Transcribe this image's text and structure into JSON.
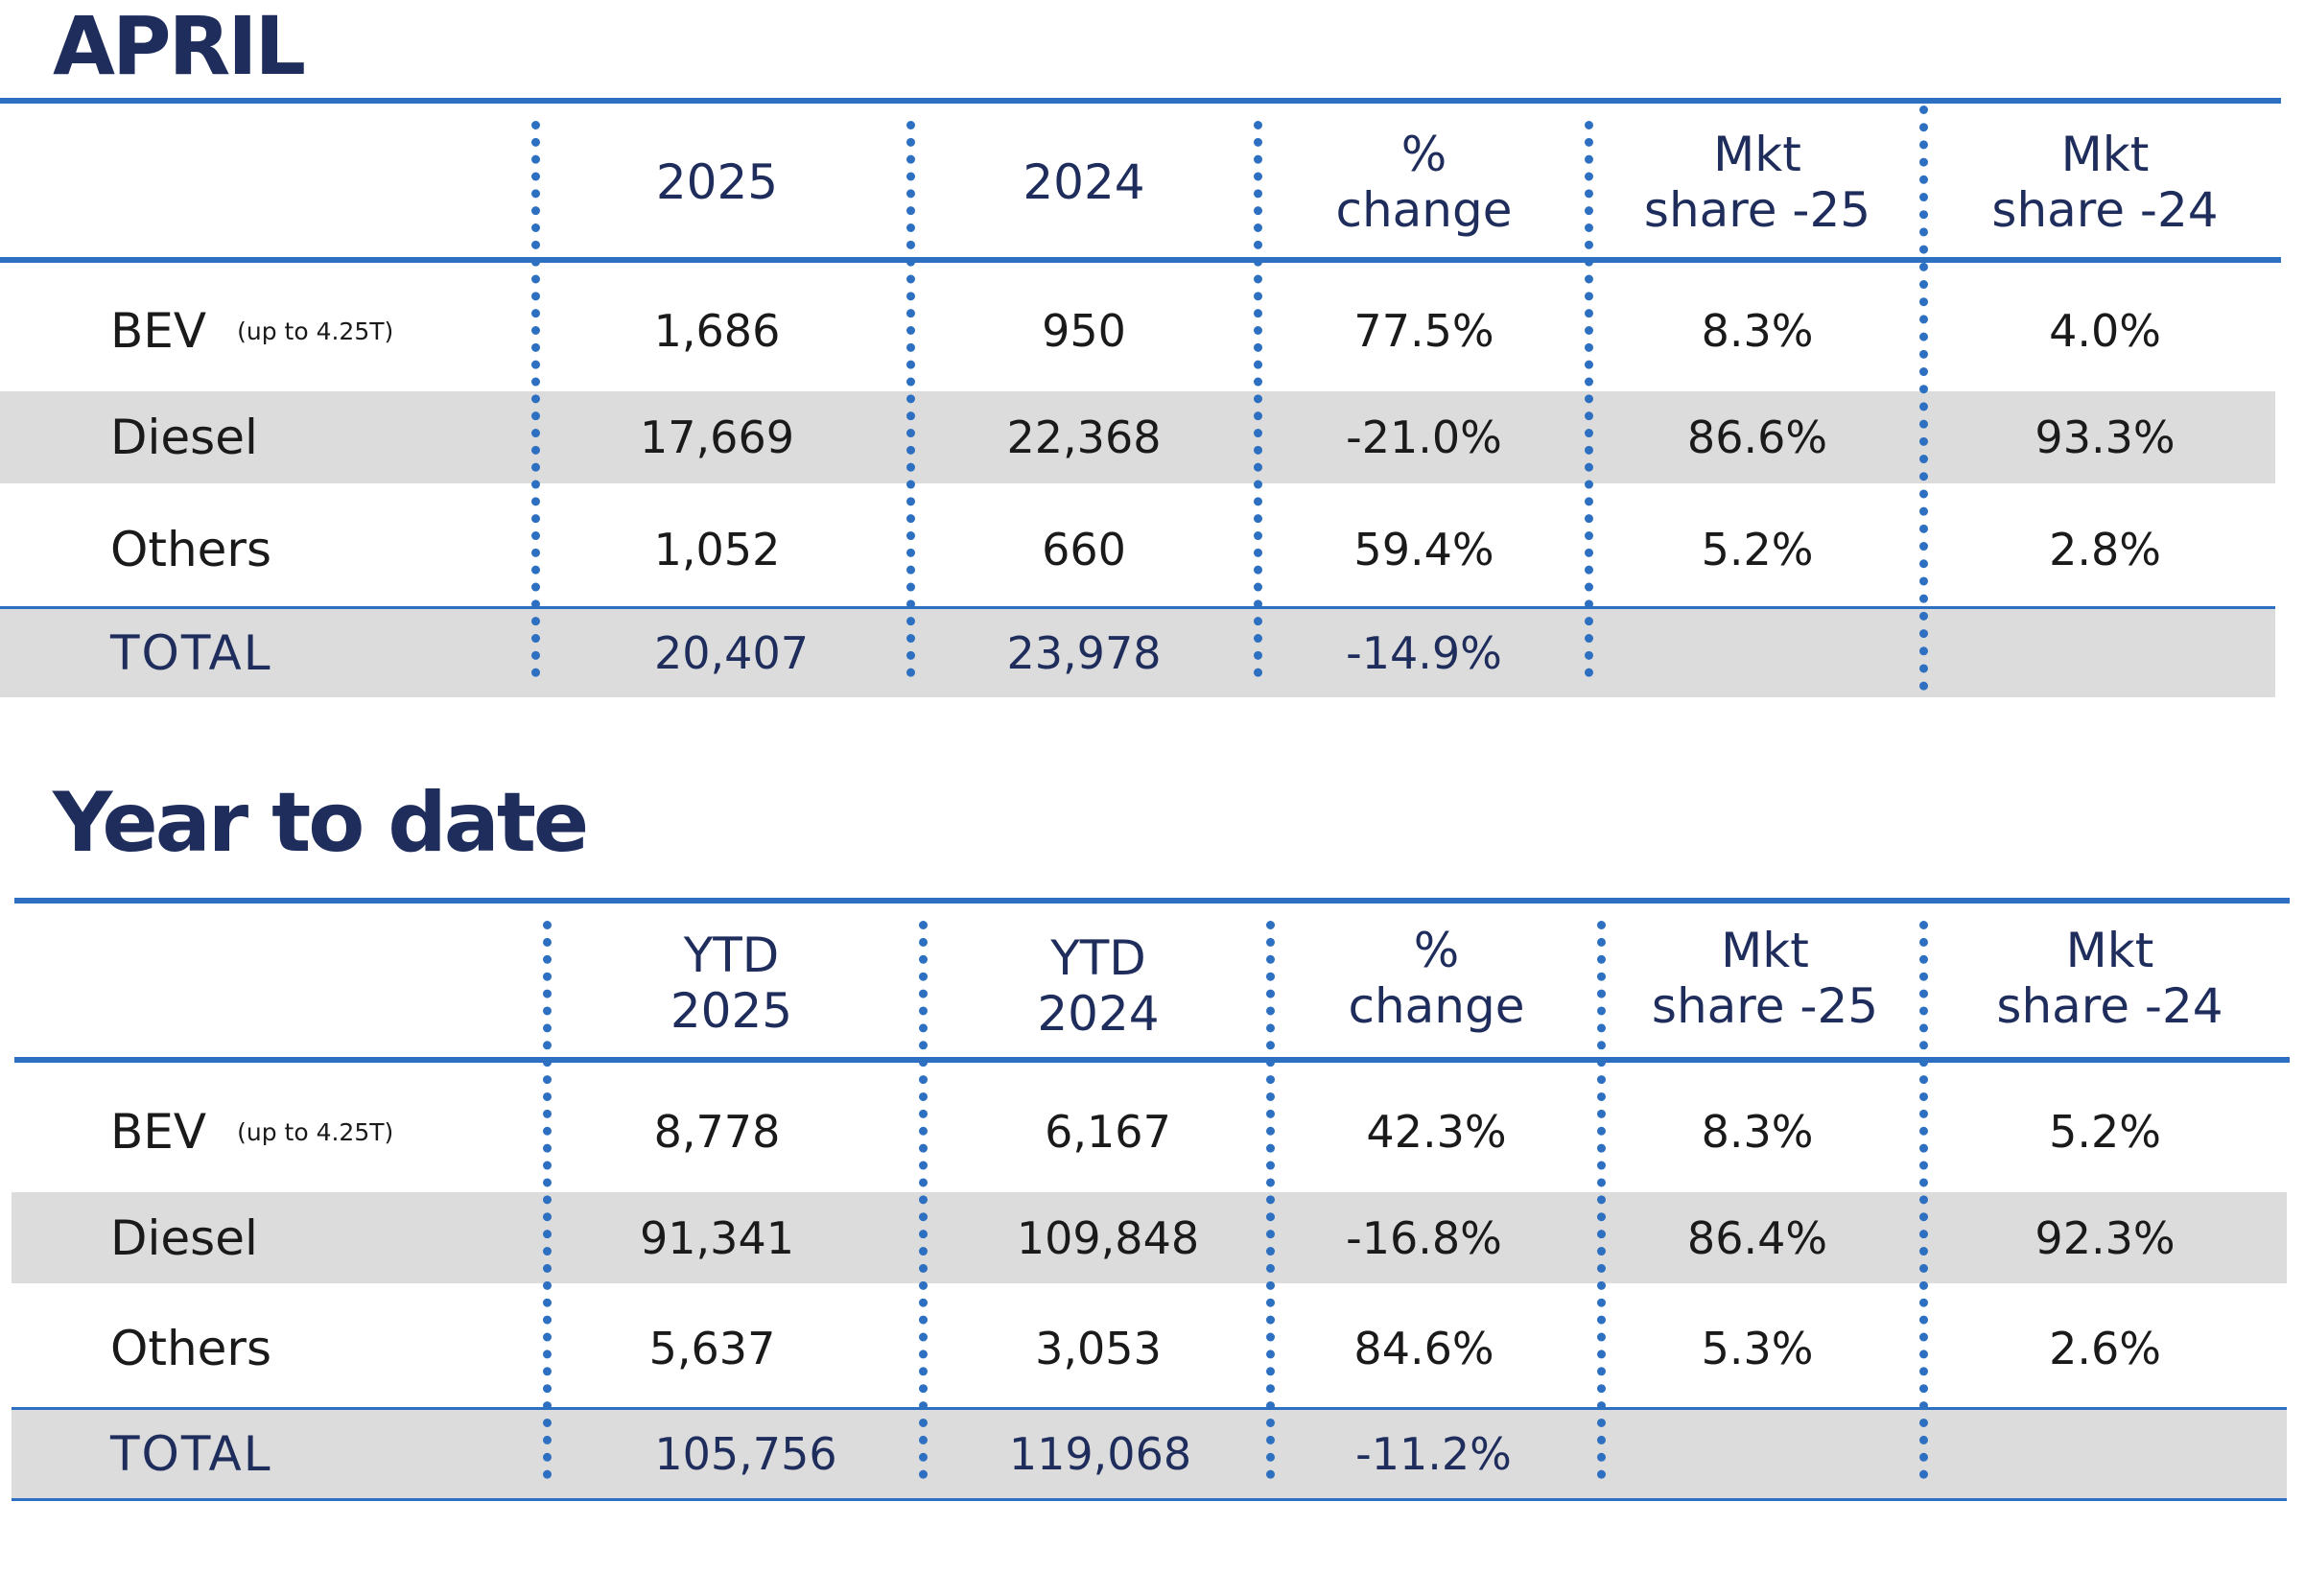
{
  "tables": [
    {
      "heading": "APRIL",
      "headers": [
        {
          "line1": "2025",
          "line2": ""
        },
        {
          "line1": "2024",
          "line2": ""
        },
        {
          "line1": "%",
          "line2": "change"
        },
        {
          "line1": "Mkt",
          "line2": "share -25"
        },
        {
          "line1": "Mkt",
          "line2": "share -24"
        }
      ],
      "rows": [
        {
          "label": "BEV",
          "note": "(up to 4.25T)",
          "values": [
            "1,686",
            "950",
            "77.5%",
            "8.3%",
            "4.0%"
          ]
        },
        {
          "label": "Diesel",
          "note": "",
          "values": [
            "17,669",
            "22,368",
            "-21.0%",
            "86.6%",
            "93.3%"
          ]
        },
        {
          "label": "Others",
          "note": "",
          "values": [
            "1,052",
            "660",
            "59.4%",
            "5.2%",
            "2.8%"
          ]
        },
        {
          "label": "TOTAL",
          "note": "",
          "values": [
            "20,407",
            "23,978",
            "-14.9%",
            "",
            ""
          ]
        }
      ]
    },
    {
      "heading": "Year to date",
      "headers": [
        {
          "line1": "YTD",
          "line2": "2025"
        },
        {
          "line1": "YTD",
          "line2": "2024"
        },
        {
          "line1": "%",
          "line2": "change"
        },
        {
          "line1": "Mkt",
          "line2": "share -25"
        },
        {
          "line1": "Mkt",
          "line2": "share -24"
        }
      ],
      "rows": [
        {
          "label": "BEV",
          "note": "(up to 4.25T)",
          "values": [
            "8,778",
            "6,167",
            "42.3%",
            "8.3%",
            "5.2%"
          ]
        },
        {
          "label": "Diesel",
          "note": "",
          "values": [
            "91,341",
            "109,848",
            "-16.8%",
            "86.4%",
            "92.3%"
          ]
        },
        {
          "label": "Others",
          "note": "",
          "values": [
            "5,637",
            "3,053",
            "84.6%",
            "5.3%",
            "2.6%"
          ]
        },
        {
          "label": "TOTAL",
          "note": "",
          "values": [
            "105,756",
            "119,068",
            "-11.2%",
            "",
            ""
          ]
        }
      ]
    }
  ],
  "colors": {
    "heading": "#1f2d5c",
    "rule": "#2d6fc0",
    "shade": "#dcdcdc"
  }
}
